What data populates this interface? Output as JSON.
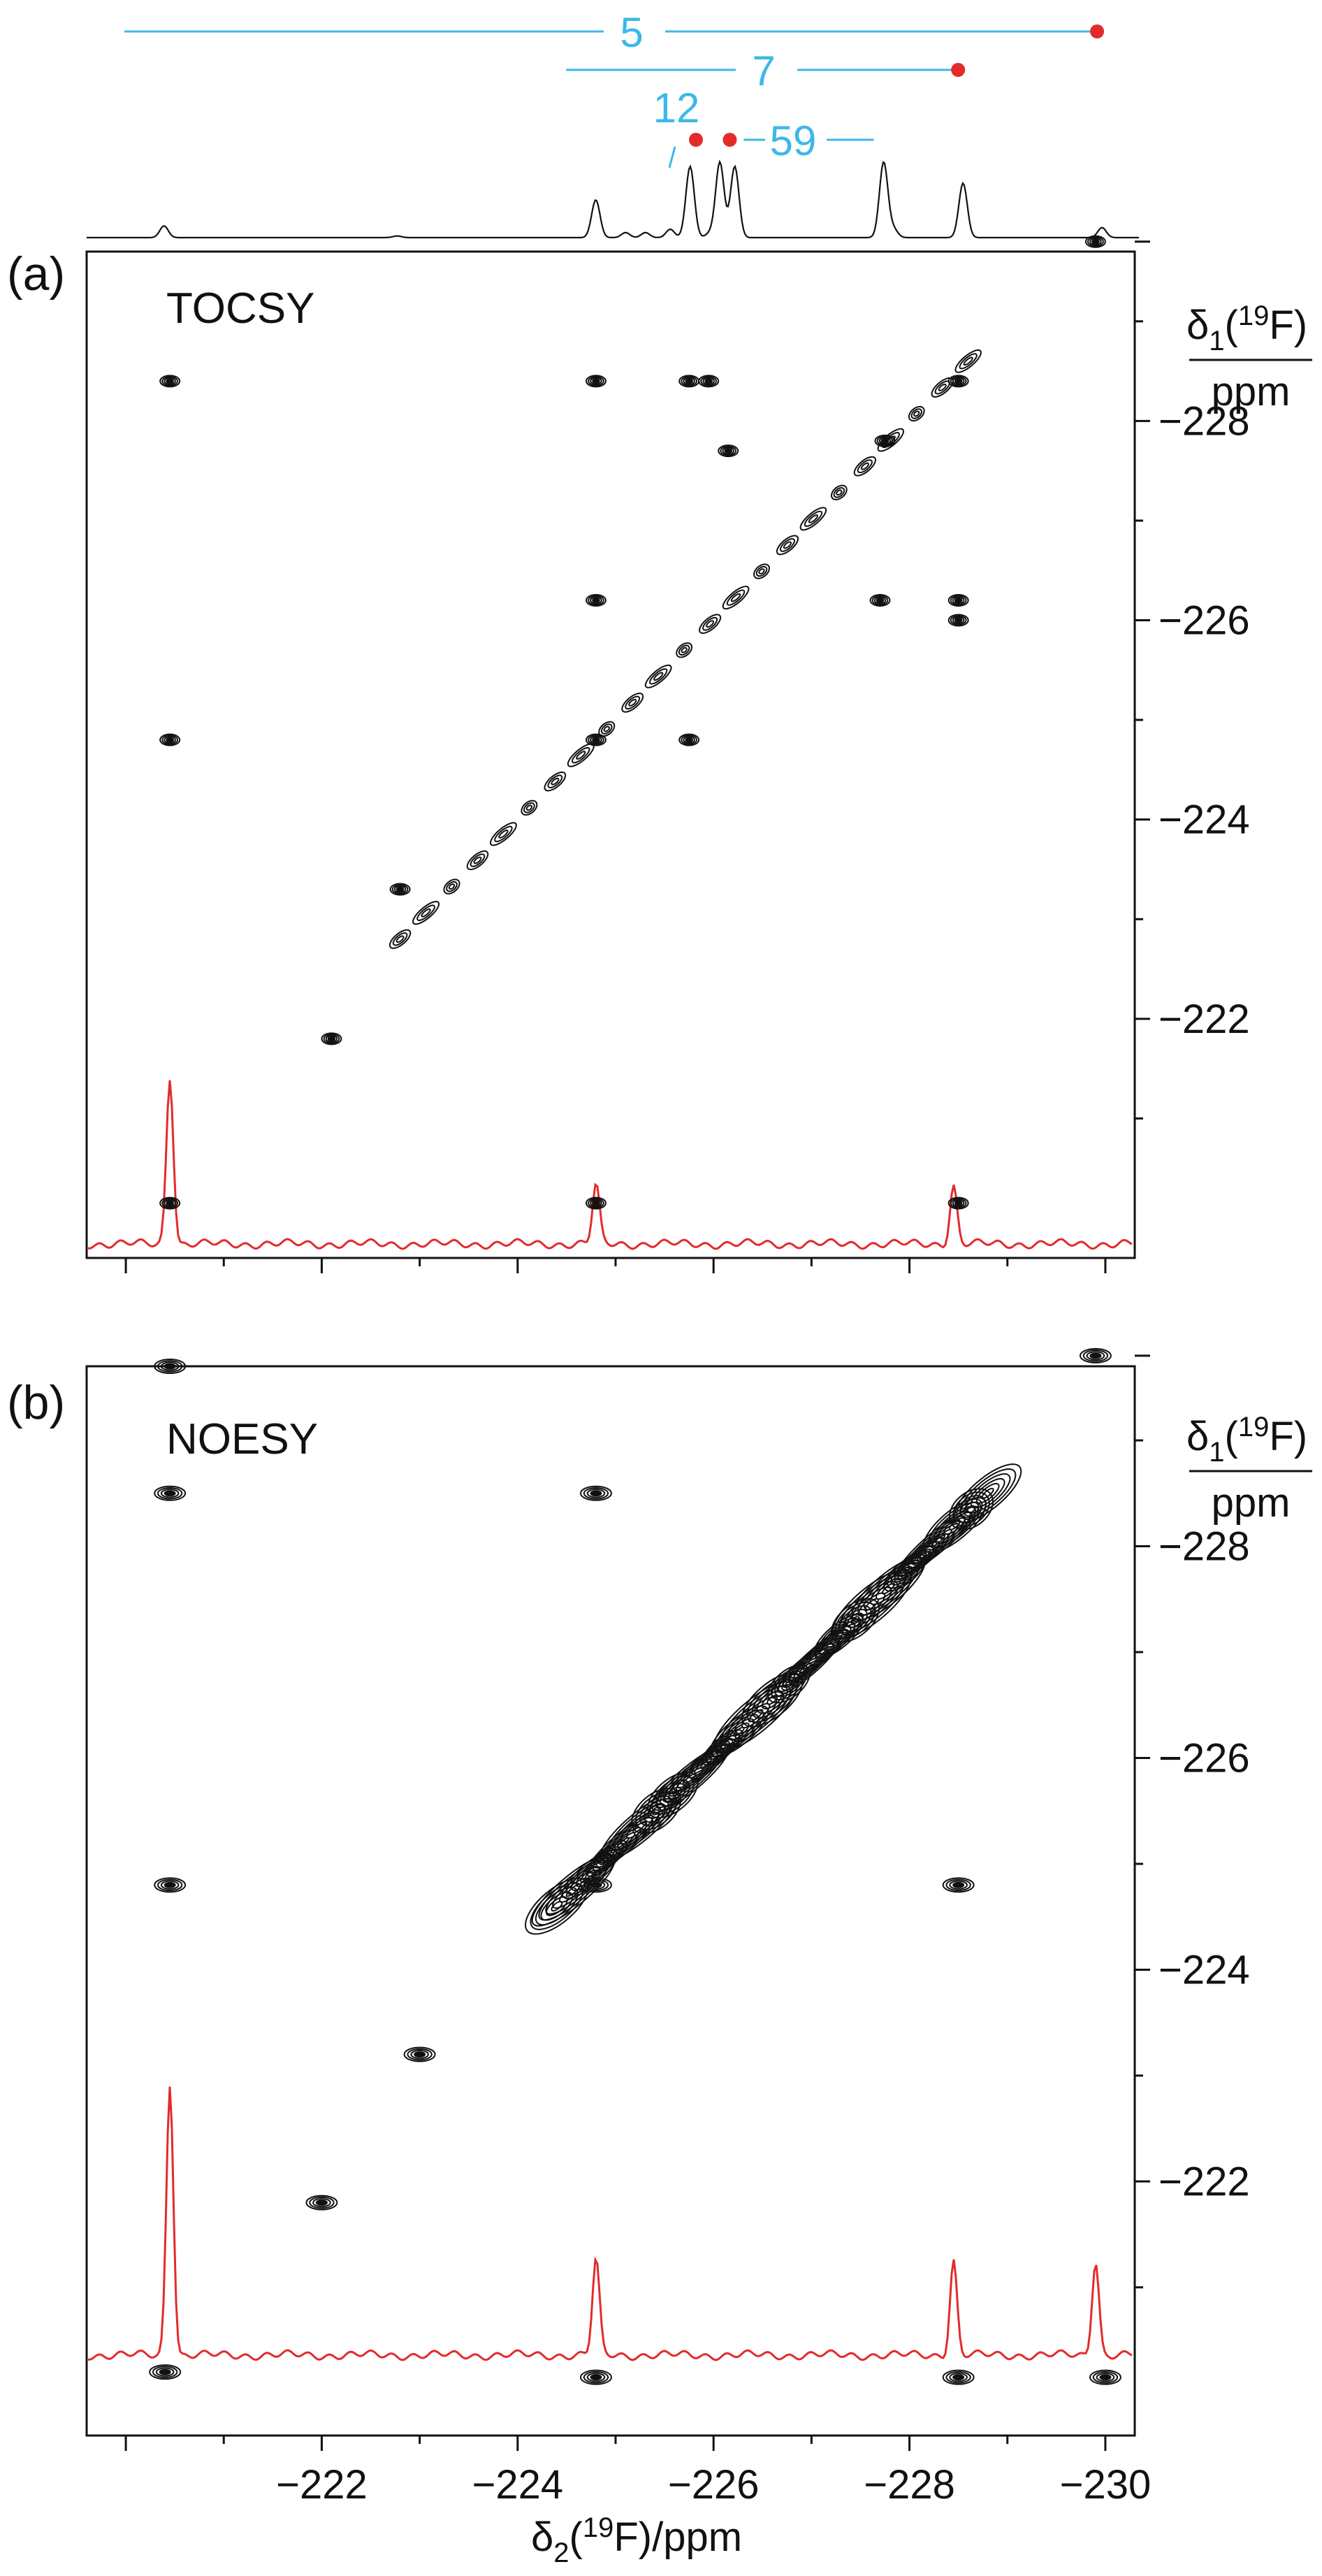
{
  "chart_data": [
    {
      "type": "line",
      "name": "top-1d-spectrum",
      "x_axis_range_ppm": [
        -219.6,
        -230.3
      ],
      "peaks_ppm": [
        -220.45,
        -222.8,
        -224.8,
        -225.1,
        -225.3,
        -225.55,
        -225.75,
        -225.95,
        -226.05,
        -226.2,
        -227.7,
        -227.8,
        -228.5,
        -229.9
      ],
      "multiplet_markers": [
        {
          "label": "5",
          "x_from": -220.05,
          "x_to": -229.85,
          "dot_at": -229.85
        },
        {
          "label": "7",
          "x_from": -224.5,
          "x_to": -228.45,
          "dot_at": -228.45
        },
        {
          "label": "12",
          "x_from": -225.95,
          "x_to": -225.95,
          "dot_at": -225.97
        },
        {
          "label": "59",
          "x_from": -226.15,
          "x_to": -227.6,
          "dot_at": -226.15
        }
      ],
      "label_color": "#3DB8E8",
      "dot_color": "#E32B2B"
    },
    {
      "type": "heatmap",
      "name": "tocsy-contour",
      "panel_label": "(a)",
      "title": "TOCSY",
      "ylabel_symbol": "δ",
      "ylabel_sub": "1",
      "ylabel_paren_open": "(",
      "ylabel_sup": "19",
      "ylabel_element": "F)",
      "ylabel_unit": "ppm",
      "xlim": [
        -219.6,
        -230.3
      ],
      "ylim": [
        -219.6,
        -229.7
      ],
      "yticks": [
        "-228",
        "-226",
        "-224",
        "-222"
      ],
      "ytick_values": [
        -228,
        -226,
        -224,
        -222
      ],
      "diagonal_from": [
        -222.8,
        -222.8
      ],
      "diagonal_to": [
        -228.6,
        -228.6
      ],
      "cross_peaks": [
        [
          -229.9,
          -229.8
        ],
        [
          -220.45,
          -228.4
        ],
        [
          -224.8,
          -228.4
        ],
        [
          -225.75,
          -228.4
        ],
        [
          -225.95,
          -228.4
        ],
        [
          -228.5,
          -228.4
        ],
        [
          -226.15,
          -227.7
        ],
        [
          -227.75,
          -227.8
        ],
        [
          -220.45,
          -224.8
        ],
        [
          -224.8,
          -224.8
        ],
        [
          -225.75,
          -224.8
        ],
        [
          -224.8,
          -226.2
        ],
        [
          -227.7,
          -226.2
        ],
        [
          -228.5,
          -226.2
        ],
        [
          -228.5,
          -226.0
        ],
        [
          -222.8,
          -223.3
        ],
        [
          -222.1,
          -221.8
        ],
        [
          -220.45,
          -220.15
        ],
        [
          -224.8,
          -220.15
        ],
        [
          -228.5,
          -220.15
        ]
      ],
      "slice_peaks_ppm": [
        -220.45,
        -224.8,
        -228.45
      ],
      "slice_color": "#E32B2B"
    },
    {
      "type": "heatmap",
      "name": "noesy-contour",
      "panel_label": "(b)",
      "title": "NOESY",
      "ylabel_symbol": "δ",
      "ylabel_sub": "1",
      "ylabel_paren_open": "(",
      "ylabel_sup": "19",
      "ylabel_element": "F)",
      "ylabel_unit": "ppm",
      "xlim": [
        -219.6,
        -230.3
      ],
      "ylim": [
        -219.6,
        -229.7
      ],
      "xticks": [
        "-222",
        "-224",
        "-226",
        "-228",
        "-230"
      ],
      "xtick_values": [
        -222,
        -224,
        -226,
        -228,
        -230
      ],
      "yticks": [
        "-228",
        "-226",
        "-224",
        "-222"
      ],
      "ytick_values": [
        -228,
        -226,
        -224,
        -222
      ],
      "xlabel_symbol": "δ",
      "xlabel_sub": "2",
      "xlabel_paren_open": "(",
      "xlabel_sup": "19",
      "xlabel_rest": "F)/ppm",
      "diagonal_from": [
        -224.4,
        -224.6
      ],
      "diagonal_to": [
        -228.8,
        -228.5
      ],
      "cross_peaks": [
        [
          -229.9,
          -229.8
        ],
        [
          -220.45,
          -229.7
        ],
        [
          -220.45,
          -228.5
        ],
        [
          -224.8,
          -228.5
        ],
        [
          -220.45,
          -224.8
        ],
        [
          -224.8,
          -224.8
        ],
        [
          -228.5,
          -224.8
        ],
        [
          -223.0,
          -223.2
        ],
        [
          -222.0,
          -221.8
        ],
        [
          -220.4,
          -220.2
        ],
        [
          -224.8,
          -220.15
        ],
        [
          -228.5,
          -220.15
        ],
        [
          -230.0,
          -220.15
        ]
      ],
      "slice_peaks_ppm": [
        -220.45,
        -224.8,
        -228.45,
        -229.9
      ],
      "slice_color": "#E32B2B"
    }
  ]
}
